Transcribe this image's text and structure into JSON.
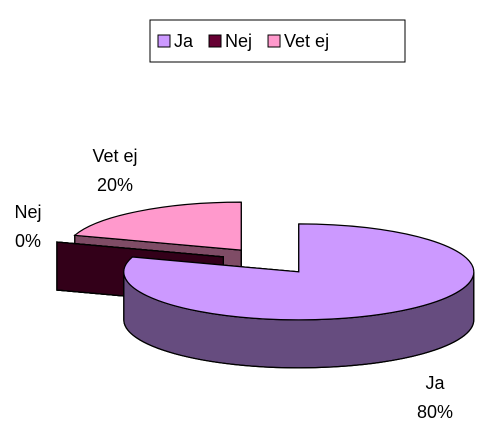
{
  "chart_data": {
    "type": "pie",
    "categories": [
      "Ja",
      "Nej",
      "Vet ej"
    ],
    "values": [
      80,
      0,
      20
    ],
    "value_labels": [
      "80%",
      "0%",
      "20%"
    ],
    "colors": [
      "#cc99ff",
      "#660033",
      "#ff99cc"
    ],
    "legend": "top"
  }
}
